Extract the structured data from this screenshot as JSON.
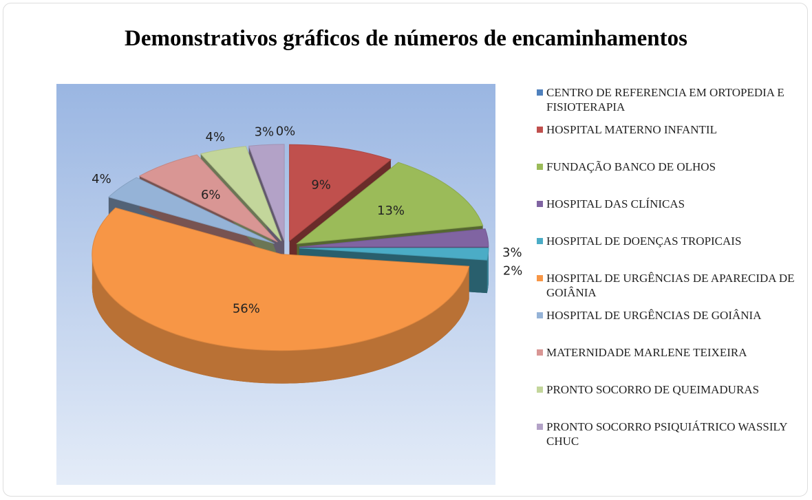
{
  "chart_data": {
    "type": "pie3d",
    "title": "Demonstrativos gráficos de números de encaminhamentos",
    "categories": [
      "CENTRO DE REFERENCIA EM ORTOPEDIA E FISIOTERAPIA",
      "HOSPITAL MATERNO INFANTIL",
      "FUNDAÇÃO BANCO DE OLHOS",
      "HOSPITAL DAS CLÍNICAS",
      "HOSPITAL DE DOENÇAS TROPICAIS",
      "HOSPITAL DE URGÊNCIAS DE APARECIDA DE GOIÂNIA",
      "HOSPITAL DE URGÊNCIAS DE GOIÂNIA",
      "MATERNIDADE MARLENE TEIXEIRA",
      "PRONTO SOCORRO DE QUEIMADURAS",
      "PRONTO SOCORRO PSIQUIÁTRICO WASSILY CHUC"
    ],
    "values": [
      0,
      9,
      13,
      3,
      2,
      56,
      4,
      6,
      4,
      3
    ],
    "value_labels": [
      "0%",
      "9%",
      "13%",
      "3%",
      "2%",
      "56%",
      "4%",
      "6%",
      "4%",
      "3%"
    ],
    "colors": [
      "#4f81bd",
      "#c0504d",
      "#9bbb59",
      "#8064a2",
      "#4bacc6",
      "#f79646",
      "#95b3d7",
      "#d99694",
      "#c3d69b",
      "#b3a2c7"
    ],
    "legend": "right"
  }
}
